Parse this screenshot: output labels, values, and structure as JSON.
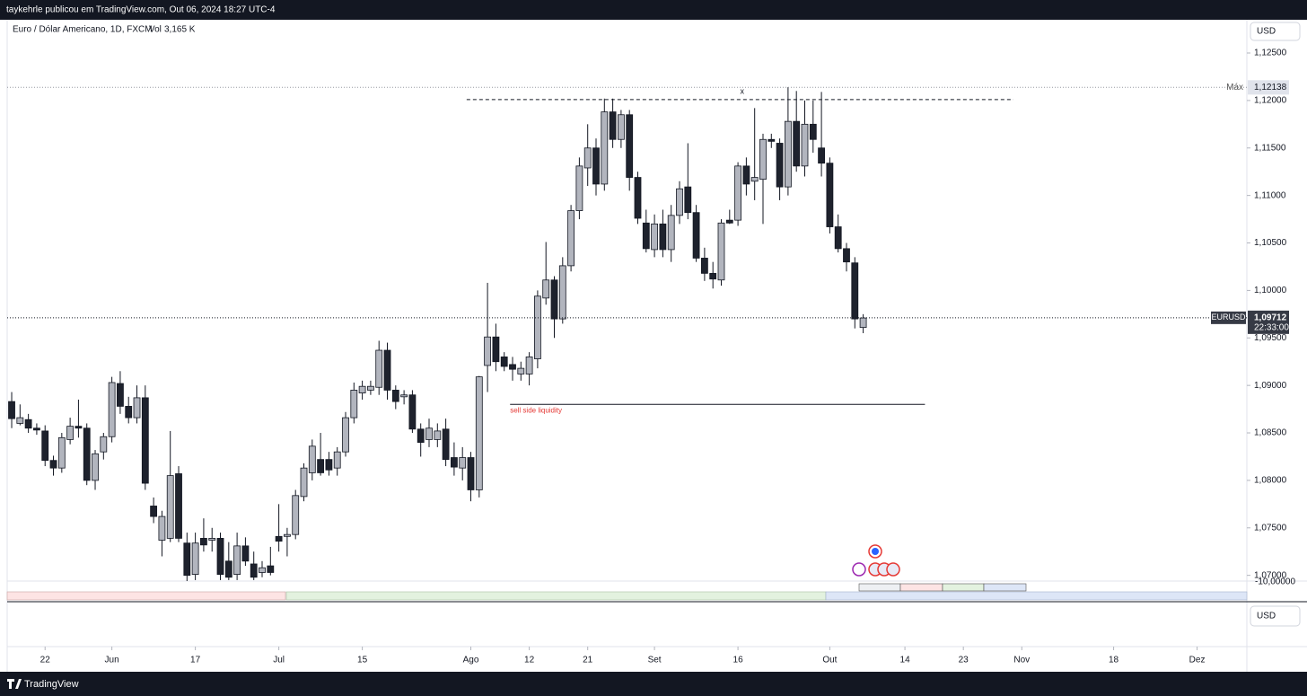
{
  "header": {
    "text": "taykehrle publicou em TradingView.com, Out 06, 2024 18:27 UTC-4"
  },
  "footer": {
    "brand": "TradingView"
  },
  "chart_data": {
    "type": "candlestick",
    "legend": "Euro / Dólar Americano, 1D, FXCM",
    "volume_title": "Vol",
    "volume_text": "3,165 K",
    "currency": "USD",
    "series": [
      {
        "name": "EURUSD",
        "up_color": "#b2b5be",
        "down_color": "#1e222d",
        "border_color": "#131722",
        "open": [
          1.0883,
          1.086,
          1.0864,
          1.0855,
          1.0852,
          1.0821,
          1.0813,
          1.0843,
          1.0857,
          1.0855,
          1.08,
          1.083,
          1.0846,
          1.0902,
          1.0878,
          1.0866,
          1.0887,
          1.0773,
          1.0737,
          1.0739,
          1.0807,
          1.0734,
          1.0701,
          1.0739,
          1.0737,
          1.0739,
          1.0715,
          1.0701,
          1.0731,
          1.0712,
          1.0703,
          1.071,
          1.0741,
          1.0741,
          1.0743,
          1.0783,
          1.0808,
          1.0822,
          1.0822,
          1.0813,
          1.083,
          1.0866,
          1.0892,
          1.0895,
          1.0898,
          1.0937,
          1.0895,
          1.0888,
          1.089,
          1.0854,
          1.0843,
          1.0843,
          1.0854,
          1.0824,
          1.0813,
          1.0824,
          1.079,
          1.0921,
          1.0951,
          1.093,
          1.0922,
          1.0912,
          1.0912,
          1.0928,
          1.0992,
          1.1011,
          1.097,
          1.1026,
          1.1084,
          1.1129,
          1.115,
          1.1112,
          1.1188,
          1.1159,
          1.1185,
          1.1119,
          1.1071,
          1.1043,
          1.107,
          1.1043,
          1.1079,
          1.1109,
          1.1082,
          1.1034,
          1.1018,
          1.1011,
          1.1074,
          1.1074,
          1.1131,
          1.1115,
          1.1117,
          1.1159,
          1.1155,
          1.1109,
          1.1178,
          1.1131,
          1.1175,
          1.115,
          1.1134,
          1.1067,
          1.1044,
          1.1029,
          1.0961
        ],
        "high": [
          1.0893,
          1.088,
          1.087,
          1.086,
          1.0858,
          1.0826,
          1.085,
          1.0866,
          1.0885,
          1.086,
          1.0832,
          1.085,
          1.0909,
          1.0915,
          1.0888,
          1.09,
          1.09,
          1.0782,
          1.0768,
          1.0852,
          1.0815,
          1.0745,
          1.0745,
          1.076,
          1.075,
          1.0745,
          1.0735,
          1.0745,
          1.074,
          1.0725,
          1.0715,
          1.073,
          1.0775,
          1.075,
          1.079,
          1.0818,
          1.0843,
          1.085,
          1.083,
          1.0835,
          1.0872,
          1.0903,
          1.0905,
          1.0905,
          1.0947,
          1.0945,
          1.09,
          1.0895,
          1.0895,
          1.086,
          1.0865,
          1.086,
          1.0865,
          1.084,
          1.0835,
          1.083,
          1.091,
          1.1008,
          1.0965,
          1.0935,
          1.093,
          1.0925,
          1.0935,
          1.1,
          1.1051,
          1.1015,
          1.1035,
          1.109,
          1.114,
          1.1175,
          1.116,
          1.1202,
          1.1202,
          1.119,
          1.119,
          1.1125,
          1.1085,
          1.108,
          1.1085,
          1.109,
          1.1115,
          1.1155,
          1.109,
          1.1045,
          1.103,
          1.1075,
          1.1085,
          1.1135,
          1.114,
          1.1192,
          1.1165,
          1.1165,
          1.116,
          1.1214,
          1.121,
          1.12,
          1.12,
          1.1209,
          1.114,
          1.108,
          1.105,
          1.1035,
          1.0975
        ],
        "low": [
          1.0855,
          1.0858,
          1.085,
          1.0848,
          1.0815,
          1.0805,
          1.0808,
          1.0838,
          1.0845,
          1.0795,
          1.079,
          1.0822,
          1.084,
          1.087,
          1.086,
          1.086,
          1.079,
          1.0755,
          1.072,
          1.0735,
          1.0735,
          1.069,
          1.0695,
          1.0725,
          1.0725,
          1.0695,
          1.0695,
          1.0695,
          1.071,
          1.0695,
          1.0698,
          1.07,
          1.0725,
          1.072,
          1.0738,
          1.0778,
          1.08,
          1.0805,
          1.0805,
          1.0805,
          1.0825,
          1.086,
          1.0885,
          1.089,
          1.089,
          1.0885,
          1.0875,
          1.088,
          1.085,
          1.0825,
          1.0835,
          1.0835,
          1.0815,
          1.0805,
          1.08,
          1.0778,
          1.0782,
          1.0893,
          1.0915,
          1.0915,
          1.0905,
          1.0905,
          1.09,
          1.0918,
          1.0985,
          1.095,
          1.0965,
          1.102,
          1.1075,
          1.111,
          1.11,
          1.1105,
          1.115,
          1.115,
          1.1105,
          1.107,
          1.104,
          1.1035,
          1.1035,
          1.103,
          1.107,
          1.1075,
          1.103,
          1.101,
          1.1002,
          1.1005,
          1.107,
          1.1068,
          1.11,
          1.1095,
          1.107,
          1.115,
          1.1095,
          1.11,
          1.1125,
          1.112,
          1.1145,
          1.112,
          1.106,
          1.104,
          1.102,
          1.096,
          1.0955
        ],
        "close": [
          1.0865,
          1.0866,
          1.0855,
          1.0853,
          1.0821,
          1.0813,
          1.0845,
          1.0857,
          1.0855,
          1.08,
          1.0828,
          1.0846,
          1.0903,
          1.0878,
          1.0866,
          1.0887,
          1.0797,
          1.0762,
          1.0762,
          1.0805,
          1.0739,
          1.07,
          1.0734,
          1.0732,
          1.0739,
          1.0701,
          1.0698,
          1.0731,
          1.0715,
          1.0698,
          1.0708,
          1.0703,
          1.0736,
          1.0743,
          1.0784,
          1.0813,
          1.0836,
          1.0808,
          1.0811,
          1.083,
          1.0866,
          1.0895,
          1.0899,
          1.0899,
          1.0937,
          1.0895,
          1.0883,
          1.089,
          1.0854,
          1.084,
          1.0855,
          1.0852,
          1.0822,
          1.0814,
          1.0824,
          1.079,
          1.0909,
          1.0951,
          1.0925,
          1.092,
          1.0917,
          1.0918,
          1.093,
          1.0994,
          1.1011,
          1.097,
          1.1026,
          1.1084,
          1.1131,
          1.115,
          1.1112,
          1.1188,
          1.1159,
          1.1185,
          1.1119,
          1.1076,
          1.1044,
          1.107,
          1.1043,
          1.1079,
          1.1107,
          1.1082,
          1.1034,
          1.1018,
          1.1012,
          1.1071,
          1.1071,
          1.1131,
          1.1112,
          1.1119,
          1.1159,
          1.1157,
          1.1109,
          1.1178,
          1.1131,
          1.1175,
          1.1159,
          1.1134,
          1.1067,
          1.1044,
          1.103,
          1.097,
          1.0971
        ]
      }
    ],
    "last_value": {
      "value": 1.09712,
      "label": "1,09712"
    },
    "countdown": "22:33:00",
    "max": {
      "title": "Máx",
      "value": 1.12138,
      "label": "1,12138"
    },
    "ylim": [
      1.0694,
      1.1285
    ],
    "yticks": [
      {
        "value": 1.07,
        "label": "1,07000"
      },
      {
        "value": 1.075,
        "label": "1,07500"
      },
      {
        "value": 1.08,
        "label": "1,08000"
      },
      {
        "value": 1.085,
        "label": "1,08500"
      },
      {
        "value": 1.09,
        "label": "1,09000"
      },
      {
        "value": 1.095,
        "label": "1,09500"
      },
      {
        "value": 1.1,
        "label": "1,10000"
      },
      {
        "value": 1.105,
        "label": "1,10500"
      },
      {
        "value": 1.11,
        "label": "1,11000"
      },
      {
        "value": 1.115,
        "label": "1,11500"
      },
      {
        "value": 1.12,
        "label": "1,12000"
      },
      {
        "value": 1.125,
        "label": "1,12500"
      }
    ],
    "xlim": [
      -0.54,
      147.96
    ],
    "xticks": [
      {
        "value": 4,
        "label": "22"
      },
      {
        "value": 12,
        "label": "Jun"
      },
      {
        "value": 22,
        "label": "17"
      },
      {
        "value": 32,
        "label": "Jul"
      },
      {
        "value": 42,
        "label": "15"
      },
      {
        "value": 55,
        "label": "Ago"
      },
      {
        "value": 62,
        "label": "12"
      },
      {
        "value": 69,
        "label": "21"
      },
      {
        "value": 77,
        "label": "Set"
      },
      {
        "value": 87,
        "label": "16"
      },
      {
        "value": 98,
        "label": "Out"
      },
      {
        "value": 107,
        "label": "14"
      },
      {
        "value": 114,
        "label": "23"
      },
      {
        "value": 121,
        "label": "Nov"
      },
      {
        "value": 132,
        "label": "18"
      },
      {
        "value": 142,
        "label": "Dez"
      }
    ],
    "annotations": [
      {
        "style": "dashed",
        "value": 1.1201,
        "x": [
          54.5,
          120
        ]
      },
      {
        "text": "sell side liquidity",
        "value": 1.088,
        "x": [
          59.7,
          109.4
        ]
      },
      {
        "text": "x",
        "value": 1.1209,
        "x": [
          87.5,
          87.5
        ]
      }
    ]
  },
  "lower_pane": {
    "label": "-10,00000",
    "currency": "USD"
  }
}
